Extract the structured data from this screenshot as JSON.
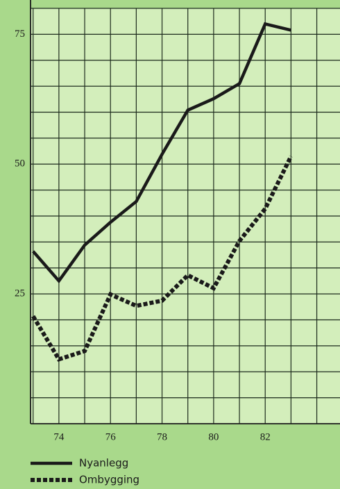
{
  "chart_data": {
    "type": "line",
    "x": [
      73,
      74,
      75,
      76,
      77,
      78,
      79,
      80,
      81,
      82,
      83
    ],
    "series": [
      {
        "name": "Nyanlegg",
        "color": "#1a1a1a",
        "dash": "solid",
        "values": [
          33.2,
          27.5,
          34.4,
          38.8,
          42.8,
          51.9,
          60.4,
          62.6,
          65.5,
          77,
          75.8
        ]
      },
      {
        "name": "Ombygging",
        "color": "#1a1a1a",
        "dash": "dotted",
        "values": [
          20.7,
          12.4,
          14,
          24.9,
          22.7,
          23.7,
          28.6,
          26.1,
          35.2,
          41.4,
          51.5
        ]
      }
    ],
    "xlim": [
      72.9,
      84.9
    ],
    "xticks": [
      74,
      76,
      78,
      80,
      82
    ],
    "ylim": [
      0,
      80
    ],
    "yticks": [
      25,
      50,
      75
    ],
    "grid": true,
    "xgrid": [
      73,
      74,
      75,
      76,
      77,
      78,
      79,
      80,
      81,
      82,
      83,
      84
    ],
    "ygrid": [
      5,
      10,
      15,
      20,
      25,
      30,
      35,
      40,
      45,
      50,
      55,
      60,
      65,
      70,
      75
    ],
    "legend": "bottom-left"
  }
}
